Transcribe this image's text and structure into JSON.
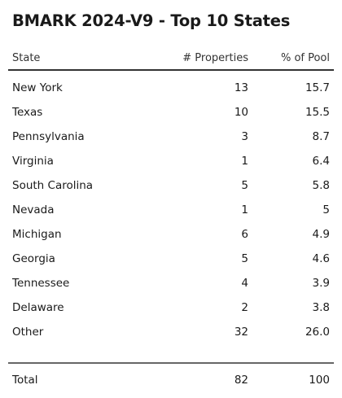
{
  "title": "BMARK 2024-V9 - Top 10 States",
  "columns": {
    "state": "State",
    "properties": "# Properties",
    "pool": "% of Pool"
  },
  "rows": [
    {
      "state": "New York",
      "properties": "13",
      "pool": "15.7"
    },
    {
      "state": "Texas",
      "properties": "10",
      "pool": "15.5"
    },
    {
      "state": "Pennsylvania",
      "properties": "3",
      "pool": "8.7"
    },
    {
      "state": "Virginia",
      "properties": "1",
      "pool": "6.4"
    },
    {
      "state": "South Carolina",
      "properties": "5",
      "pool": "5.8"
    },
    {
      "state": "Nevada",
      "properties": "1",
      "pool": "5"
    },
    {
      "state": "Michigan",
      "properties": "6",
      "pool": "4.9"
    },
    {
      "state": "Georgia",
      "properties": "5",
      "pool": "4.6"
    },
    {
      "state": "Tennessee",
      "properties": "4",
      "pool": "3.9"
    },
    {
      "state": "Delaware",
      "properties": "2",
      "pool": "3.8"
    },
    {
      "state": "Other",
      "properties": "32",
      "pool": "26.0"
    }
  ],
  "total": {
    "state": "Total",
    "properties": "82",
    "pool": "100"
  }
}
